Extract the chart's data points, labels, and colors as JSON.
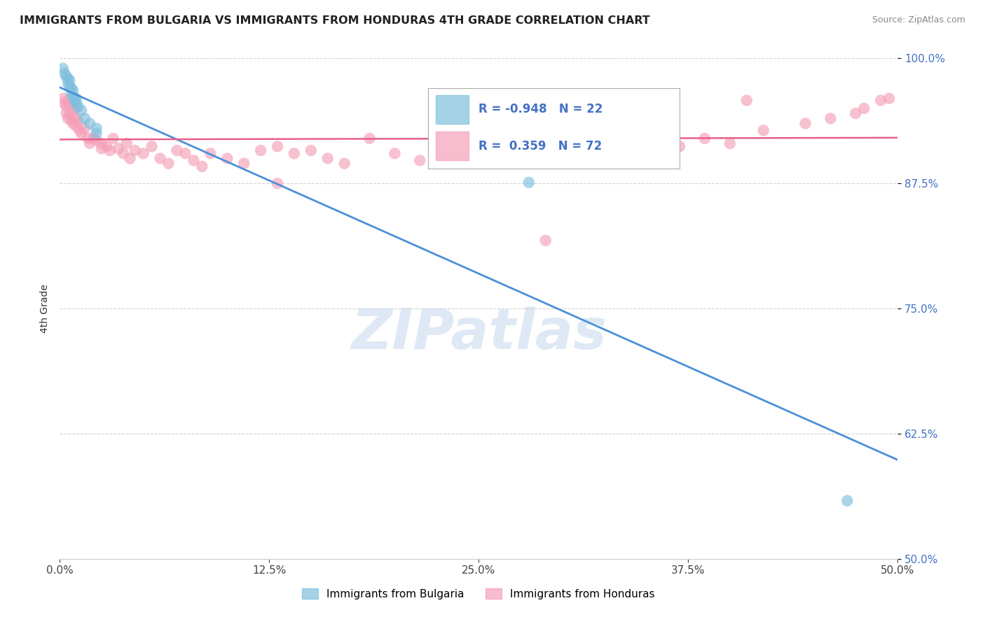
{
  "title": "IMMIGRANTS FROM BULGARIA VS IMMIGRANTS FROM HONDURAS 4TH GRADE CORRELATION CHART",
  "source_text": "Source: ZipAtlas.com",
  "ylabel": "4th Grade",
  "xlim": [
    0.0,
    0.5
  ],
  "ylim": [
    0.5,
    1.0
  ],
  "xtick_labels": [
    "0.0%",
    "12.5%",
    "25.0%",
    "37.5%",
    "50.0%"
  ],
  "xtick_vals": [
    0.0,
    0.125,
    0.25,
    0.375,
    0.5
  ],
  "ytick_labels": [
    "100.0%",
    "87.5%",
    "75.0%",
    "62.5%",
    "50.0%"
  ],
  "ytick_vals": [
    1.0,
    0.875,
    0.75,
    0.625,
    0.5
  ],
  "bulgaria_color": "#7fbfde",
  "honduras_color": "#f4a0b8",
  "bulgaria_line_color": "#4a90d9",
  "honduras_line_color": "#e8608a",
  "bulgaria_R": -0.948,
  "bulgaria_N": 22,
  "honduras_R": 0.359,
  "honduras_N": 72,
  "watermark": "ZIPatlas",
  "bulgaria_scatter_x": [
    0.002,
    0.003,
    0.004,
    0.005,
    0.005,
    0.006,
    0.006,
    0.007,
    0.007,
    0.008,
    0.008,
    0.009,
    0.01,
    0.01,
    0.011,
    0.013,
    0.015,
    0.018,
    0.022,
    0.022,
    0.28,
    0.47
  ],
  "bulgaria_scatter_y": [
    0.99,
    0.985,
    0.982,
    0.98,
    0.975,
    0.972,
    0.978,
    0.97,
    0.965,
    0.962,
    0.968,
    0.958,
    0.955,
    0.96,
    0.952,
    0.948,
    0.94,
    0.935,
    0.93,
    0.925,
    0.876,
    0.558
  ],
  "honduras_scatter_x": [
    0.002,
    0.003,
    0.004,
    0.004,
    0.005,
    0.005,
    0.006,
    0.006,
    0.007,
    0.008,
    0.008,
    0.009,
    0.01,
    0.01,
    0.011,
    0.012,
    0.013,
    0.015,
    0.017,
    0.018,
    0.02,
    0.022,
    0.025,
    0.025,
    0.028,
    0.03,
    0.032,
    0.035,
    0.038,
    0.04,
    0.042,
    0.045,
    0.05,
    0.055,
    0.06,
    0.065,
    0.07,
    0.075,
    0.08,
    0.085,
    0.09,
    0.1,
    0.11,
    0.12,
    0.13,
    0.14,
    0.15,
    0.16,
    0.17,
    0.185,
    0.2,
    0.215,
    0.23,
    0.25,
    0.27,
    0.295,
    0.31,
    0.33,
    0.35,
    0.37,
    0.385,
    0.4,
    0.42,
    0.445,
    0.46,
    0.475,
    0.48,
    0.49,
    0.495,
    0.13,
    0.29,
    0.41
  ],
  "honduras_scatter_y": [
    0.96,
    0.955,
    0.952,
    0.945,
    0.958,
    0.94,
    0.955,
    0.945,
    0.938,
    0.948,
    0.935,
    0.94,
    0.95,
    0.932,
    0.938,
    0.928,
    0.925,
    0.93,
    0.92,
    0.915,
    0.92,
    0.918,
    0.915,
    0.91,
    0.912,
    0.908,
    0.92,
    0.91,
    0.905,
    0.915,
    0.9,
    0.908,
    0.905,
    0.912,
    0.9,
    0.895,
    0.908,
    0.905,
    0.898,
    0.892,
    0.905,
    0.9,
    0.895,
    0.908,
    0.912,
    0.905,
    0.908,
    0.9,
    0.895,
    0.92,
    0.905,
    0.898,
    0.915,
    0.908,
    0.9,
    0.915,
    0.91,
    0.905,
    0.918,
    0.912,
    0.92,
    0.915,
    0.928,
    0.935,
    0.94,
    0.945,
    0.95,
    0.958,
    0.96,
    0.875,
    0.818,
    0.958
  ]
}
